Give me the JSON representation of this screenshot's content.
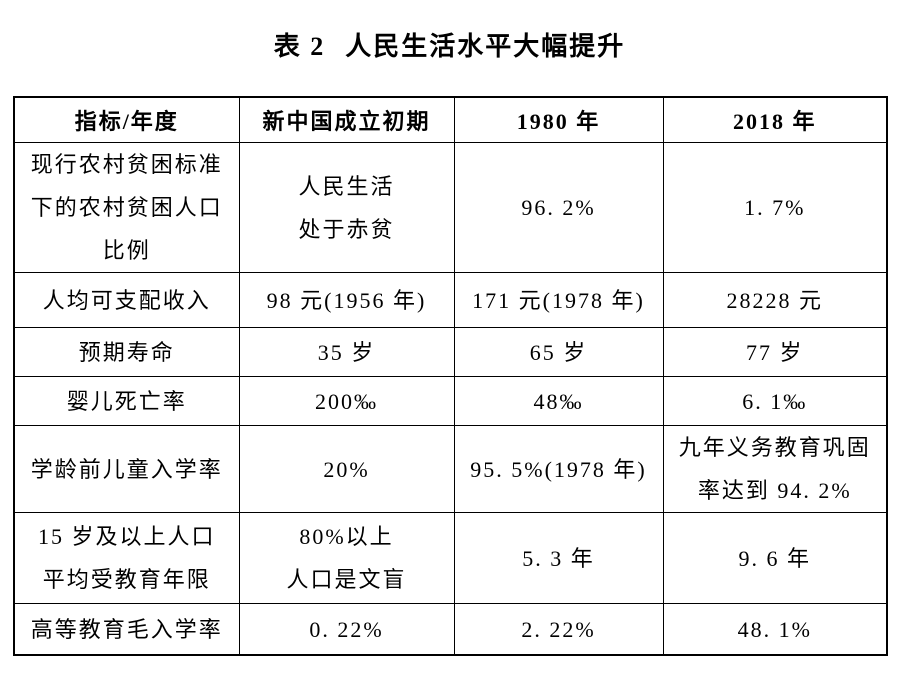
{
  "title": {
    "label": "表 2",
    "text": "人民生活水平大幅提升"
  },
  "colors": {
    "text": "#000000",
    "border": "#000000",
    "background": "#ffffff"
  },
  "table": {
    "headers": [
      "指标/年度",
      "新中国成立初期",
      "1980 年",
      "2018 年"
    ],
    "rows": [
      {
        "cells": [
          [
            "现行农村贫困标准",
            "下的农村贫困人口",
            "比例"
          ],
          [
            "人民生活",
            "处于赤贫"
          ],
          [
            "96. 2%"
          ],
          [
            "1. 7%"
          ]
        ]
      },
      {
        "cells": [
          [
            "人均可支配收入"
          ],
          [
            "98 元(1956 年)"
          ],
          [
            "171 元(1978 年)"
          ],
          [
            "28228 元"
          ]
        ]
      },
      {
        "cells": [
          [
            "预期寿命"
          ],
          [
            "35 岁"
          ],
          [
            "65 岁"
          ],
          [
            "77 岁"
          ]
        ]
      },
      {
        "cells": [
          [
            "婴儿死亡率"
          ],
          [
            "200‰"
          ],
          [
            "48‰"
          ],
          [
            "6. 1‰"
          ]
        ]
      },
      {
        "cells": [
          [
            "学龄前儿童入学率"
          ],
          [
            "20%"
          ],
          [
            "95. 5%(1978 年)"
          ],
          [
            "九年义务教育巩固",
            "率达到 94. 2%"
          ]
        ]
      },
      {
        "cells": [
          [
            "15 岁及以上人口",
            "平均受教育年限"
          ],
          [
            "80%以上",
            "人口是文盲"
          ],
          [
            "5. 3 年"
          ],
          [
            "9. 6 年"
          ]
        ]
      },
      {
        "cells": [
          [
            "高等教育毛入学率"
          ],
          [
            "0. 22%"
          ],
          [
            "2. 22%"
          ],
          [
            "48. 1%"
          ]
        ]
      }
    ]
  }
}
